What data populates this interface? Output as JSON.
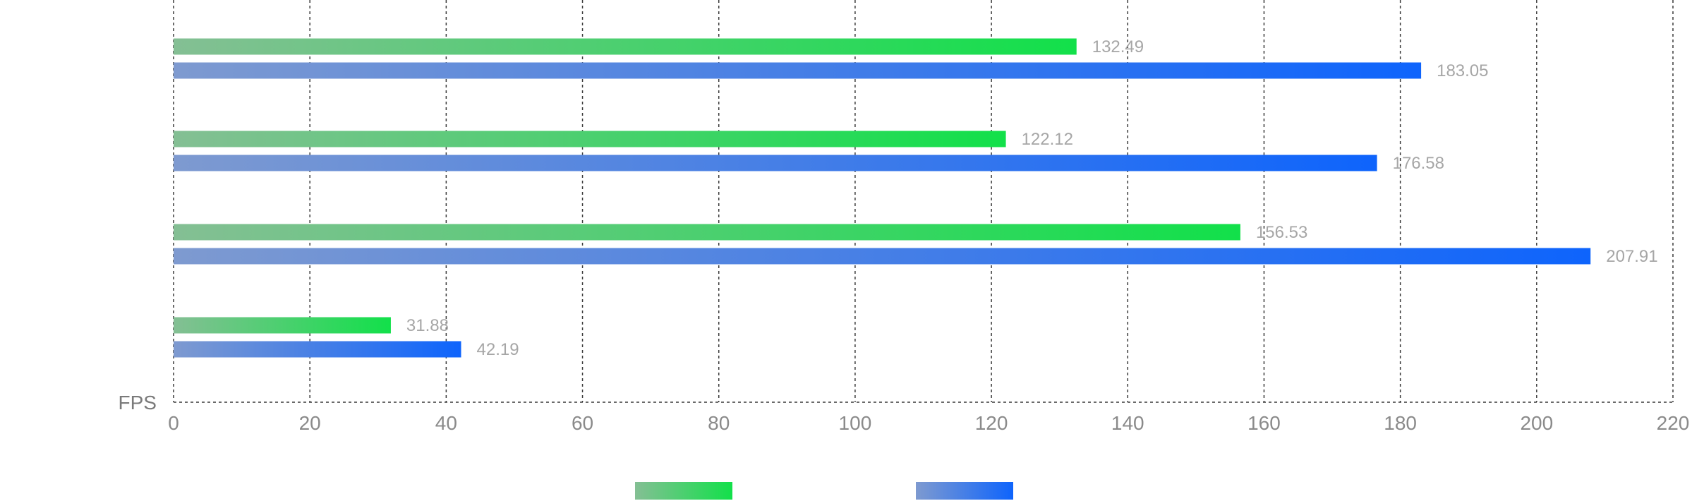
{
  "chart_data": {
    "type": "bar",
    "orientation": "horizontal",
    "xlabel": "FPS",
    "ylabel": "",
    "xlim": [
      0,
      220
    ],
    "x_ticks": [
      "0",
      "20",
      "40",
      "60",
      "80",
      "100",
      "120",
      "140",
      "160",
      "180",
      "200",
      "220"
    ],
    "grid": "vertical-dashed",
    "categories": [
      "",
      "",
      "",
      ""
    ],
    "series": [
      {
        "values": [
          132.49,
          122.12,
          156.53,
          31.88
        ],
        "labels": [
          "132.49",
          "122.12",
          "156.53",
          "31.88"
        ],
        "color_start": "#84bf94",
        "color_end": "#12e04a"
      },
      {
        "values": [
          183.05,
          176.58,
          207.91,
          42.19
        ],
        "labels": [
          "183.05",
          "176.58",
          "207.91",
          "42.19"
        ],
        "color_start": "#7e9ad0",
        "color_end": "#0e64fc"
      }
    ],
    "legend": {
      "placement": "bottom-center",
      "items": [
        "",
        ""
      ]
    }
  }
}
